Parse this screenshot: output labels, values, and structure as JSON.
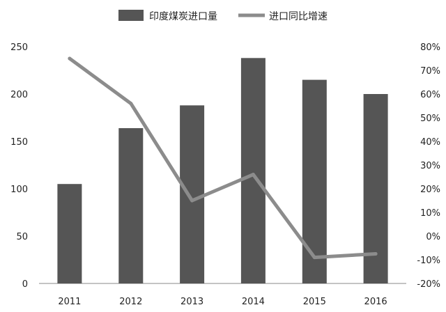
{
  "chart_data": {
    "type": "bar",
    "categories": [
      "2011",
      "2012",
      "2013",
      "2014",
      "2015",
      "2016"
    ],
    "series": [
      {
        "name": "印度煤炭进口量",
        "type": "bar",
        "axis": "left",
        "color": "#555555",
        "values": [
          105,
          164,
          188,
          238,
          215,
          200
        ]
      },
      {
        "name": "进口同比增速",
        "type": "line",
        "axis": "right",
        "color": "#8c8c8c",
        "values": [
          75,
          56,
          15,
          26,
          -9,
          -7.5
        ]
      }
    ],
    "y_left": {
      "min": 0,
      "max": 250,
      "ticks": [
        "0",
        "50",
        "100",
        "150",
        "200",
        "250"
      ]
    },
    "y_right": {
      "min": -20,
      "max": 80,
      "ticks": [
        "-20%",
        "-10%",
        "0%",
        "10%",
        "20%",
        "30%",
        "40%",
        "50%",
        "60%",
        "70%",
        "80%"
      ]
    },
    "grid": false,
    "legend_position": "top-center"
  }
}
